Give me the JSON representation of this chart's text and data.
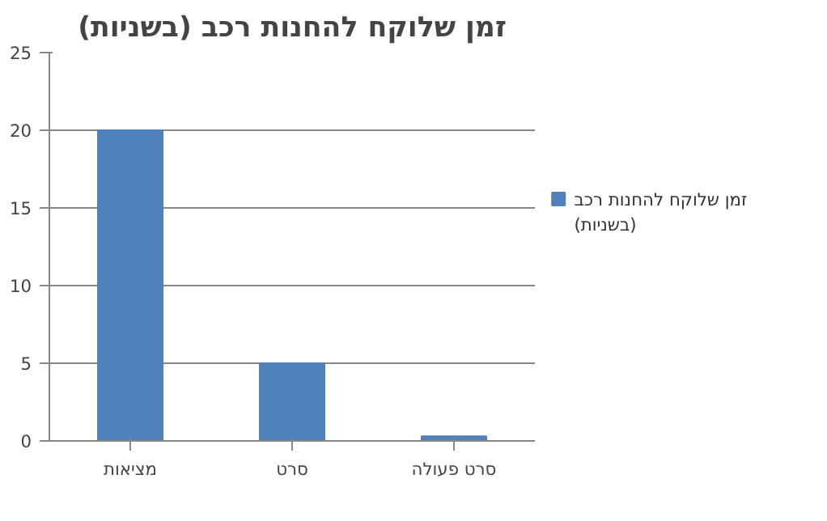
{
  "chart_data": {
    "type": "bar",
    "title": "זמן שלוקח להחנות רכב (בשניות)",
    "categories": [
      "מציאות",
      "סרט",
      "סרט פעולה"
    ],
    "series": [
      {
        "name": "זמן שלוקח להחנות רכב (בשניות)",
        "color": "#4f81bd",
        "values": [
          20,
          5,
          0.3
        ]
      }
    ],
    "ylim": [
      0,
      25
    ],
    "yticks": [
      0,
      5,
      10,
      15,
      20,
      25
    ],
    "grid": "y",
    "legend": "right"
  }
}
